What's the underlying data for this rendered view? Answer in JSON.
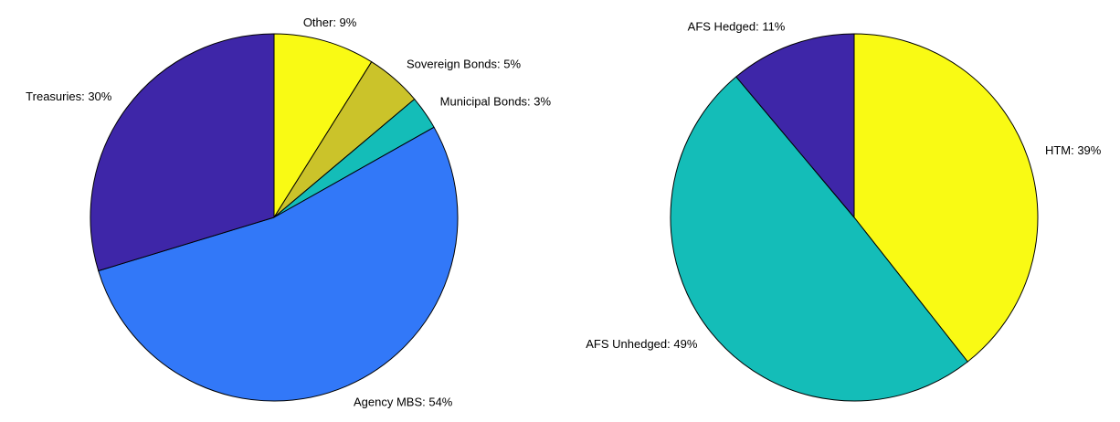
{
  "chart_data": [
    {
      "type": "pie",
      "values": [
        9,
        5,
        3,
        54,
        30
      ],
      "value_labels": [
        "Other: 9%",
        "Sovereign Bonds: 5%",
        "Municipal Bonds: 3%",
        "Agency MBS: 54%",
        "Treasuries: 30%"
      ],
      "colors": [
        "#f9fa14",
        "#cbc32a",
        "#14bdb8",
        "#3278f8",
        "#3e26a8"
      ]
    },
    {
      "type": "pie",
      "values": [
        39,
        49,
        11
      ],
      "value_labels": [
        "HTM: 39%",
        "AFS Unhedged: 49%",
        "AFS Hedged: 11%"
      ],
      "colors": [
        "#f9fa14",
        "#14bdb8",
        "#3e26a8"
      ]
    }
  ]
}
